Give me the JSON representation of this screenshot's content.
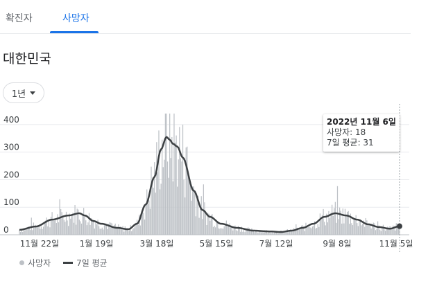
{
  "tabs": [
    {
      "label": "확진자",
      "active": false
    },
    {
      "label": "사망자",
      "active": true
    }
  ],
  "region_title": "대한민국",
  "period_selector": {
    "label": "1년"
  },
  "tooltip": {
    "date": "2022년 11월 6일",
    "deaths_line": "사망자: 18",
    "avg_line": "7일 평균: 31"
  },
  "legend": {
    "series1": "사망자",
    "series2": "7일 평균"
  },
  "colors": {
    "accent": "#1a73e8",
    "bars": "#bdc1c6",
    "avg_line": "#3c4043"
  },
  "chart_data": {
    "type": "bar",
    "title": "",
    "xlabel": "",
    "ylabel": "",
    "ylim": [
      0,
      450
    ],
    "yticks": [
      0,
      100,
      200,
      300,
      400
    ],
    "grid": true,
    "xtick_labels": [
      "11월 22일",
      "1월 19일",
      "3월 18일",
      "5월 15일",
      "7월 12일",
      "9월 8일",
      "11월 5일"
    ],
    "series": [
      {
        "name": "사망자",
        "kind": "bar"
      },
      {
        "name": "7일 평균",
        "kind": "line"
      }
    ],
    "avg_anchors_days": [
      0,
      15,
      30,
      45,
      55,
      60,
      68,
      75,
      90,
      100,
      108,
      116,
      124,
      130,
      135,
      138,
      141,
      145,
      150,
      160,
      168,
      175,
      185,
      200,
      215,
      230,
      240,
      250,
      260,
      270,
      280,
      290,
      300,
      310,
      320,
      330,
      340,
      349
    ],
    "avg_anchor_values": [
      18,
      30,
      55,
      70,
      78,
      70,
      50,
      40,
      25,
      20,
      40,
      110,
      210,
      310,
      355,
      345,
      330,
      320,
      280,
      160,
      90,
      65,
      40,
      25,
      15,
      12,
      10,
      15,
      25,
      40,
      65,
      78,
      70,
      55,
      38,
      28,
      22,
      31
    ]
  }
}
